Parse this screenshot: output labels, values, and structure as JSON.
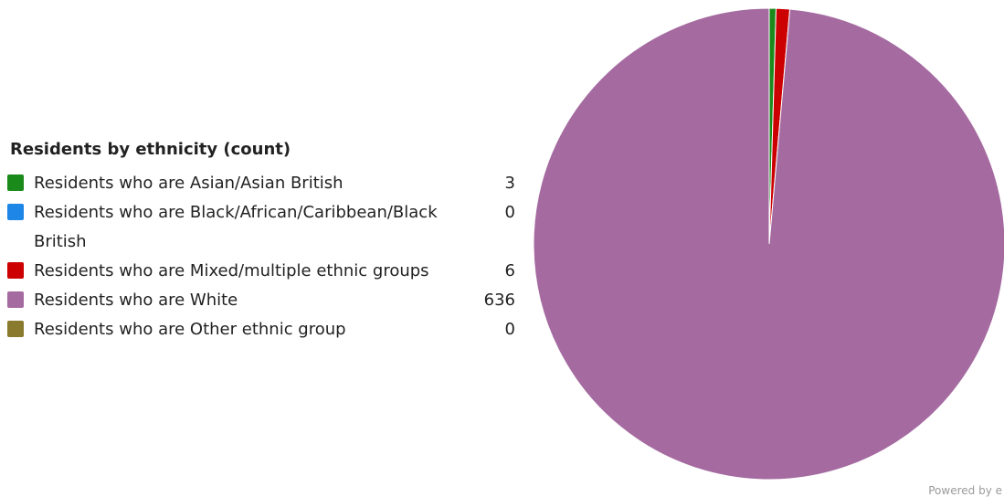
{
  "chart_data": {
    "type": "pie",
    "title": "Residents by ethnicity (count)",
    "categories": [
      "Residents who are Asian/Asian British",
      "Residents who are Black/African/Caribbean/Black British",
      "Residents who are Mixed/multiple ethnic groups",
      "Residents who are White",
      "Residents who are Other ethnic group"
    ],
    "values": [
      3,
      0,
      6,
      636,
      0
    ],
    "value_labels": [
      "3",
      "0",
      "6",
      "636",
      "0"
    ],
    "colors": [
      "#1a8a1a",
      "#1e86e6",
      "#cc0000",
      "#a56ba1",
      "#8a7a2e"
    ],
    "legend_position": "left"
  },
  "footer": {
    "credit": "Powered by e"
  }
}
